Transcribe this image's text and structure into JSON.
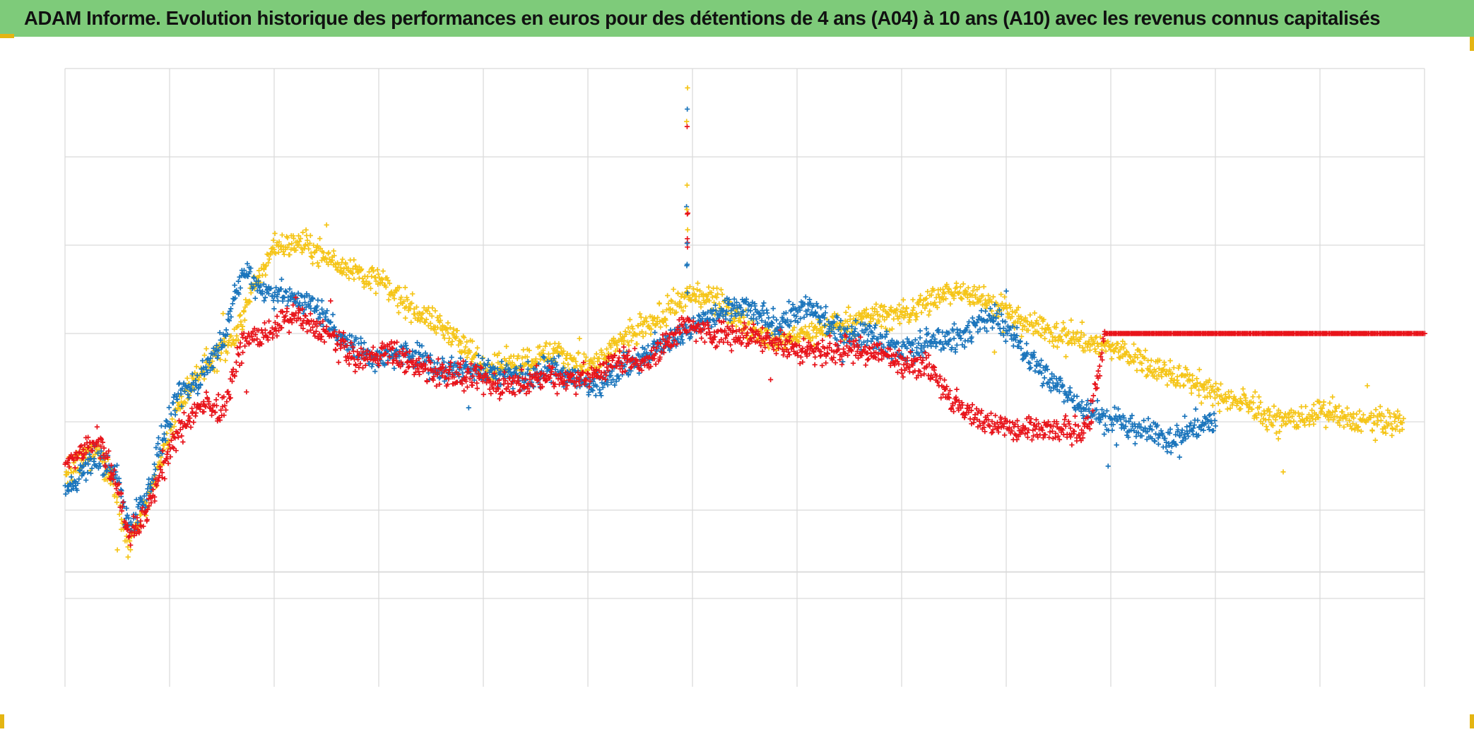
{
  "title": "ADAM Informe. Evolution historique des performances en euros pour des détentions de 4 ans (A04) à 10 ans (A10) avec les revenus connus capitalisés",
  "colors": {
    "title_background": "#7ecb7a",
    "grid": "#d9d9d9",
    "corner_accent": "#e4b512"
  },
  "chart_data": {
    "type": "scatter",
    "marker": "plus",
    "title": "ADAM Informe. Evolution historique des performances en euros pour des détentions de 4 ans (A04) à 10 ans (A10) avec les revenus connus capitalisés",
    "xlabel": "",
    "ylabel": "",
    "xlim": [
      0,
      13
    ],
    "ylim": [
      -1,
      6
    ],
    "grid": true,
    "legend": "none",
    "x_gridlines": 13,
    "y_gridlines": [
      0,
      0.3,
      1,
      2,
      3,
      4,
      5,
      6
    ],
    "series": [
      {
        "name": "yellow",
        "color": "#f5c518",
        "x_range": [
          0,
          12.8
        ],
        "points": [
          [
            0,
            1.4
          ],
          [
            0.3,
            1.7
          ],
          [
            0.5,
            1.2
          ],
          [
            0.6,
            0.6
          ],
          [
            0.8,
            1.1
          ],
          [
            0.9,
            1.5
          ],
          [
            1.1,
            2.2
          ],
          [
            1.3,
            2.6
          ],
          [
            1.6,
            2.9
          ],
          [
            1.8,
            3.5
          ],
          [
            2.0,
            4.0
          ],
          [
            2.3,
            4.0
          ],
          [
            2.6,
            3.8
          ],
          [
            3.0,
            3.6
          ],
          [
            3.3,
            3.3
          ],
          [
            3.7,
            3.0
          ],
          [
            4.0,
            2.6
          ],
          [
            4.4,
            2.7
          ],
          [
            4.7,
            2.8
          ],
          [
            5.0,
            2.6
          ],
          [
            5.3,
            2.9
          ],
          [
            5.6,
            3.1
          ],
          [
            5.9,
            3.4
          ],
          [
            6.2,
            3.4
          ],
          [
            6.5,
            3.1
          ],
          [
            6.8,
            2.9
          ],
          [
            7.1,
            3.0
          ],
          [
            7.4,
            3.1
          ],
          [
            7.7,
            3.2
          ],
          [
            8.0,
            3.2
          ],
          [
            8.3,
            3.4
          ],
          [
            8.6,
            3.5
          ],
          [
            8.9,
            3.3
          ],
          [
            9.2,
            3.1
          ],
          [
            9.5,
            3.0
          ],
          [
            9.8,
            2.9
          ],
          [
            10.1,
            2.8
          ],
          [
            10.4,
            2.6
          ],
          [
            10.7,
            2.5
          ],
          [
            11.0,
            2.3
          ],
          [
            11.3,
            2.2
          ],
          [
            11.6,
            2.0
          ],
          [
            12.0,
            2.1
          ],
          [
            12.4,
            2.0
          ],
          [
            12.8,
            2.0
          ]
        ]
      },
      {
        "name": "blue",
        "color": "#1b75bc",
        "x_range": [
          0,
          11
        ],
        "points": [
          [
            0,
            1.2
          ],
          [
            0.3,
            1.6
          ],
          [
            0.5,
            1.4
          ],
          [
            0.6,
            0.8
          ],
          [
            0.8,
            1.2
          ],
          [
            0.9,
            1.7
          ],
          [
            1.1,
            2.3
          ],
          [
            1.3,
            2.5
          ],
          [
            1.5,
            2.9
          ],
          [
            1.7,
            3.7
          ],
          [
            1.9,
            3.5
          ],
          [
            2.2,
            3.4
          ],
          [
            2.4,
            3.3
          ],
          [
            2.7,
            2.9
          ],
          [
            3.0,
            2.7
          ],
          [
            3.3,
            2.8
          ],
          [
            3.6,
            2.6
          ],
          [
            4.0,
            2.6
          ],
          [
            4.4,
            2.5
          ],
          [
            4.7,
            2.6
          ],
          [
            5.0,
            2.4
          ],
          [
            5.3,
            2.6
          ],
          [
            5.6,
            2.8
          ],
          [
            5.9,
            3.0
          ],
          [
            6.2,
            3.2
          ],
          [
            6.5,
            3.3
          ],
          [
            6.8,
            3.1
          ],
          [
            7.1,
            3.3
          ],
          [
            7.4,
            3.0
          ],
          [
            7.7,
            3.0
          ],
          [
            8.0,
            2.8
          ],
          [
            8.3,
            2.9
          ],
          [
            8.6,
            3.0
          ],
          [
            8.9,
            3.2
          ],
          [
            9.1,
            2.9
          ],
          [
            9.4,
            2.5
          ],
          [
            9.7,
            2.2
          ],
          [
            10.0,
            2.0
          ],
          [
            10.3,
            1.9
          ],
          [
            10.6,
            1.8
          ],
          [
            10.9,
            2.0
          ],
          [
            11.0,
            2.0
          ]
        ]
      },
      {
        "name": "red",
        "color": "#e8141b",
        "x_range": [
          0,
          13
        ],
        "points": [
          [
            0,
            1.5
          ],
          [
            0.3,
            1.8
          ],
          [
            0.5,
            1.3
          ],
          [
            0.6,
            0.7
          ],
          [
            0.8,
            1.0
          ],
          [
            0.9,
            1.4
          ],
          [
            1.1,
            1.9
          ],
          [
            1.3,
            2.2
          ],
          [
            1.5,
            2.1
          ],
          [
            1.7,
            2.9
          ],
          [
            1.9,
            3.0
          ],
          [
            2.2,
            3.2
          ],
          [
            2.5,
            3.0
          ],
          [
            2.8,
            2.7
          ],
          [
            3.1,
            2.8
          ],
          [
            3.4,
            2.6
          ],
          [
            3.8,
            2.5
          ],
          [
            4.2,
            2.4
          ],
          [
            4.6,
            2.5
          ],
          [
            5.0,
            2.5
          ],
          [
            5.3,
            2.7
          ],
          [
            5.6,
            2.7
          ],
          [
            5.9,
            3.1
          ],
          [
            6.2,
            3.0
          ],
          [
            6.5,
            3.0
          ],
          [
            6.8,
            2.9
          ],
          [
            7.1,
            2.8
          ],
          [
            7.4,
            2.8
          ],
          [
            7.7,
            2.8
          ],
          [
            8.0,
            2.7
          ],
          [
            8.3,
            2.6
          ],
          [
            8.5,
            2.2
          ],
          [
            8.8,
            2.0
          ],
          [
            9.1,
            1.9
          ],
          [
            9.4,
            1.9
          ],
          [
            9.7,
            1.9
          ],
          [
            9.8,
            2.0
          ],
          [
            9.95,
            3.0
          ],
          [
            13.0,
            3.0
          ]
        ]
      }
    ]
  }
}
